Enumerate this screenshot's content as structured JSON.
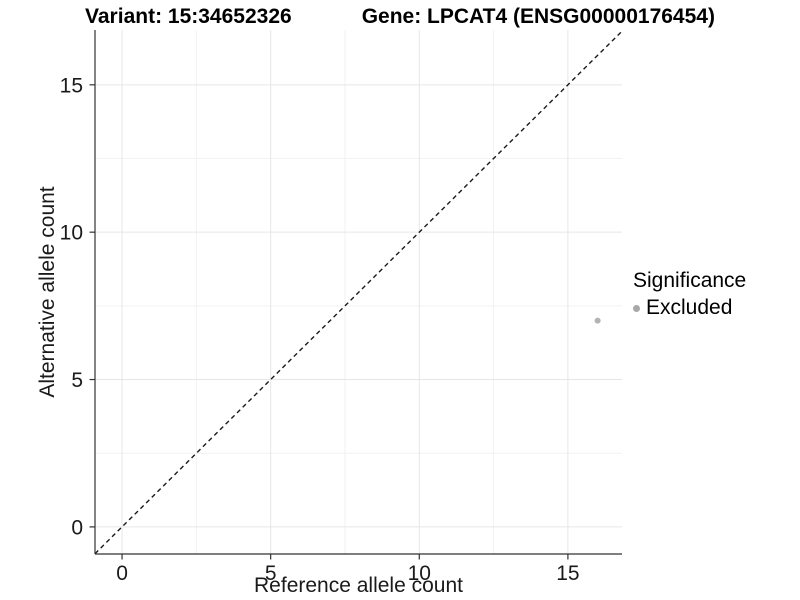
{
  "style": {
    "background": "#ffffff",
    "grid_major": "#e6e6e6",
    "grid_minor": "#f2f2f2",
    "axis_line": "#333333",
    "tick_label_color": "#1a1a1a",
    "title_color": "#000000",
    "point_color": "#b3b3b3",
    "legend_dot_color": "#a8a8a8",
    "dashed_line_color": "#1a1a1a"
  },
  "chart_data": {
    "type": "scatter",
    "title_left": "Variant: 15:34652326",
    "title_right": "Gene: LPCAT4 (ENSG00000176454)",
    "xlabel": "Reference allele count",
    "ylabel": "Alternative allele count",
    "xlim": [
      -0.91,
      16.82
    ],
    "ylim": [
      -0.92,
      16.86
    ],
    "x_major_ticks": [
      0,
      5,
      10,
      15
    ],
    "y_major_ticks": [
      0,
      5,
      10,
      15
    ],
    "x_minor_gridlines": [
      2.5,
      7.5,
      12.5
    ],
    "y_minor_gridlines": [
      2.5,
      7.5,
      12.5
    ],
    "grid": "major and minor, light gray on white panel",
    "reference_line": {
      "type": "identity",
      "slope": 1,
      "intercept": 0,
      "style": "dashed"
    },
    "series": [
      {
        "name": "Excluded",
        "points": [
          {
            "x": 16,
            "y": 7
          }
        ]
      }
    ],
    "legend": {
      "position": "right",
      "title": "Significance",
      "items": [
        {
          "label": "Excluded"
        }
      ]
    }
  }
}
